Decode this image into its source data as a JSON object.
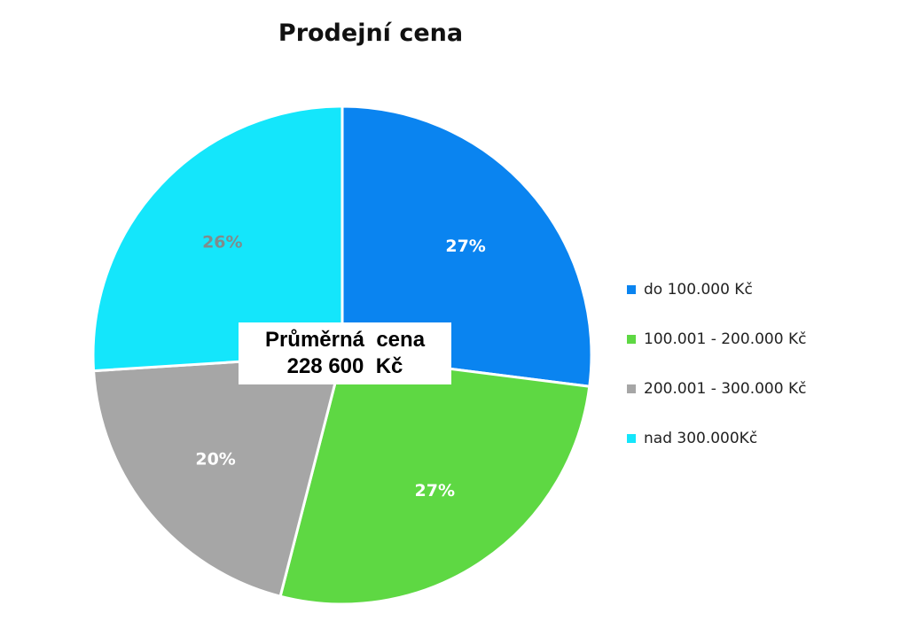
{
  "chart_data": {
    "type": "pie",
    "title": "Prodejní cena",
    "categories": [
      "do 100.000 Kč",
      "100.001 - 200.000 Kč",
      "200.001 - 300.000 Kč",
      "nad 300.000Kč"
    ],
    "values": [
      27,
      27,
      20,
      26
    ],
    "value_labels": [
      "27%",
      "27%",
      "20%",
      "26%"
    ],
    "colors": [
      "#0a84f0",
      "#5ed843",
      "#a6a6a6",
      "#14e6fb"
    ],
    "label_colors": [
      "#ffffff",
      "#ffffff",
      "#ffffff",
      "#7f8c8c"
    ],
    "legend_position": "right",
    "annotation": {
      "line1": "Průměrná  cena",
      "line2": "228 600  Kč"
    }
  }
}
